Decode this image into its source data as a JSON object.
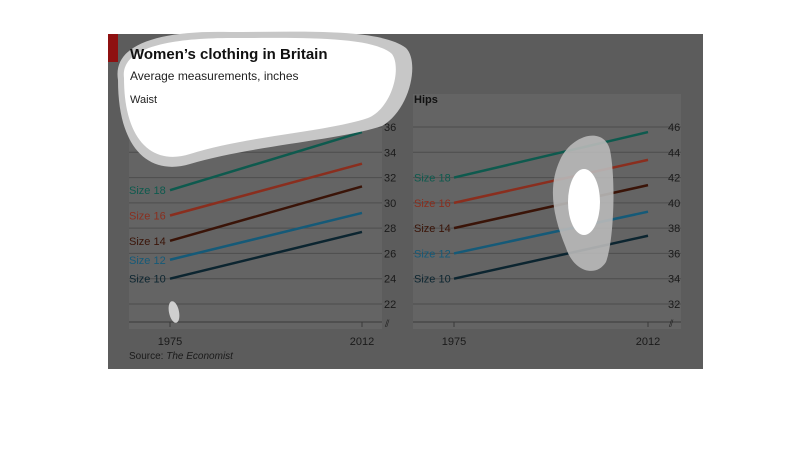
{
  "title": "Women’s clothing in Britain",
  "subtitle": "Average measurements, inches",
  "source_prefix": "Source:",
  "source_name": "The Economist",
  "colors": {
    "background": "#5c5c5c",
    "accent_tab": "#8e1010",
    "size_18": "#0e5a4e",
    "size_16": "#8a2e1e",
    "size_14": "#3a1408",
    "size_12": "#155a78",
    "size_10": "#0c2530"
  },
  "chart_data": [
    {
      "type": "line",
      "panel_label": "Waist",
      "x": [
        "1975",
        "2012"
      ],
      "y_ticks": [
        "22",
        "24",
        "26",
        "28",
        "30",
        "32",
        "34",
        "36"
      ],
      "ylim": [
        20,
        37
      ],
      "axis_break": true,
      "series": [
        {
          "name": "Size 18",
          "values": [
            31,
            35.6
          ]
        },
        {
          "name": "Size 16",
          "values": [
            29,
            33.1
          ]
        },
        {
          "name": "Size 14",
          "values": [
            27,
            31.3
          ]
        },
        {
          "name": "Size 12",
          "values": [
            25.5,
            29.2
          ]
        },
        {
          "name": "Size 10",
          "values": [
            24,
            27.7
          ]
        }
      ]
    },
    {
      "type": "line",
      "panel_label": "Hips",
      "x": [
        "1975",
        "2012"
      ],
      "y_ticks": [
        "32",
        "34",
        "36",
        "38",
        "40",
        "42",
        "44",
        "46"
      ],
      "ylim": [
        30,
        47
      ],
      "axis_break": true,
      "series": [
        {
          "name": "Size 18",
          "values": [
            42,
            45.6
          ]
        },
        {
          "name": "Size 16",
          "values": [
            40,
            43.4
          ]
        },
        {
          "name": "Size 14",
          "values": [
            38,
            41.4
          ]
        },
        {
          "name": "Size 12",
          "values": [
            36,
            39.3
          ]
        },
        {
          "name": "Size 10",
          "values": [
            34,
            37.4
          ]
        }
      ]
    }
  ]
}
